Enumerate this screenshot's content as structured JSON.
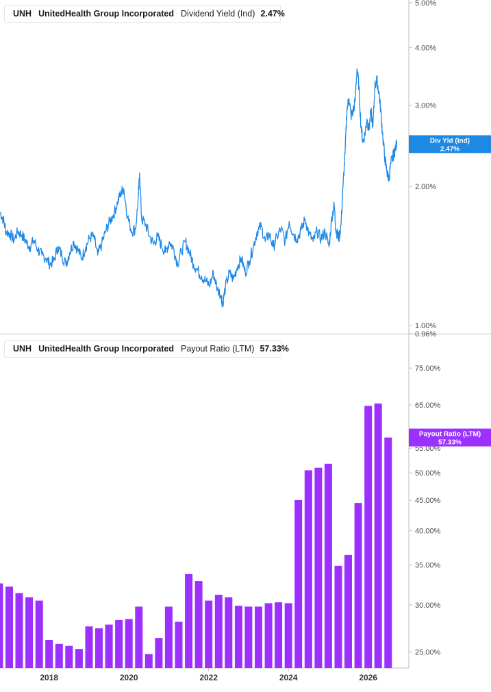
{
  "colors": {
    "yield": "#1e88e5",
    "payout": "#9b30ff",
    "axis": "#bdbdbd",
    "grid": "#e6e6e6"
  },
  "chart_data": [
    {
      "type": "line",
      "scale": "log",
      "legend": {
        "ticker": "UNH",
        "company": "UnitedHealth Group Incorporated",
        "metric": "Dividend Yield (Ind)",
        "value": "2.47%"
      },
      "marker": {
        "label": "Div Yld (Ind)",
        "value": "2.47%"
      },
      "y_ticks": [
        {
          "v": 5.0,
          "label": "5.00%"
        },
        {
          "v": 4.0,
          "label": "4.00%"
        },
        {
          "v": 3.0,
          "label": "3.00%"
        },
        {
          "v": 2.0,
          "label": "2.00%"
        },
        {
          "v": 1.0,
          "label": "1.00%"
        },
        {
          "v": 0.96,
          "label": "0.96%"
        }
      ],
      "ylim": [
        0.96,
        5.0
      ],
      "xlim": [
        2016.7,
        2026.95
      ],
      "series": [
        {
          "x": [
            2016.7,
            2016.78,
            2016.85,
            2016.95,
            2017.05,
            2017.15,
            2017.25,
            2017.35,
            2017.45,
            2017.55,
            2017.65,
            2017.75,
            2017.85,
            2017.95,
            2018.05,
            2018.15,
            2018.25,
            2018.35,
            2018.45,
            2018.55,
            2018.65,
            2018.75,
            2018.85,
            2018.95,
            2019.05,
            2019.15,
            2019.25,
            2019.35,
            2019.45,
            2019.55,
            2019.65,
            2019.72,
            2019.8,
            2019.9,
            2020.0,
            2020.1,
            2020.17,
            2020.2,
            2020.25,
            2020.35,
            2020.45,
            2020.55,
            2020.65,
            2020.75,
            2020.85,
            2020.95,
            2021.05,
            2021.15,
            2021.25,
            2021.35,
            2021.45,
            2021.55,
            2021.65,
            2021.75,
            2021.85,
            2021.95,
            2022.05,
            2022.15,
            2022.25,
            2022.28,
            2022.35,
            2022.45,
            2022.55,
            2022.65,
            2022.75,
            2022.85,
            2022.95,
            2023.05,
            2023.15,
            2023.25,
            2023.35,
            2023.45,
            2023.55,
            2023.65,
            2023.75,
            2023.85,
            2023.95,
            2024.05,
            2024.15,
            2024.25,
            2024.35,
            2024.45,
            2024.55,
            2024.65,
            2024.75,
            2024.85,
            2024.95,
            2025.02,
            2025.08,
            2025.12,
            2025.16,
            2025.2,
            2025.25,
            2025.3,
            2025.35,
            2025.4,
            2025.45,
            2025.5,
            2025.55,
            2025.6,
            2025.65,
            2025.7,
            2025.75,
            2025.8,
            2025.85,
            2025.9,
            2025.95,
            2026.0,
            2026.05,
            2026.1,
            2026.15,
            2026.2,
            2026.25,
            2026.3,
            2026.35,
            2026.4,
            2026.45,
            2026.5,
            2026.55,
            2026.6,
            2026.65
          ],
          "y": [
            1.76,
            1.7,
            1.6,
            1.58,
            1.53,
            1.6,
            1.57,
            1.52,
            1.48,
            1.53,
            1.46,
            1.42,
            1.4,
            1.36,
            1.38,
            1.48,
            1.42,
            1.36,
            1.44,
            1.52,
            1.46,
            1.4,
            1.48,
            1.55,
            1.56,
            1.42,
            1.5,
            1.6,
            1.68,
            1.74,
            1.85,
            1.93,
            1.98,
            1.72,
            1.6,
            1.62,
            1.9,
            2.14,
            1.7,
            1.66,
            1.56,
            1.5,
            1.56,
            1.49,
            1.44,
            1.52,
            1.47,
            1.36,
            1.45,
            1.52,
            1.44,
            1.36,
            1.32,
            1.28,
            1.25,
            1.22,
            1.3,
            1.2,
            1.16,
            1.11,
            1.21,
            1.3,
            1.26,
            1.34,
            1.4,
            1.3,
            1.38,
            1.48,
            1.6,
            1.64,
            1.52,
            1.58,
            1.48,
            1.56,
            1.62,
            1.52,
            1.68,
            1.58,
            1.54,
            1.61,
            1.7,
            1.58,
            1.52,
            1.6,
            1.54,
            1.6,
            1.48,
            1.72,
            1.82,
            1.62,
            1.57,
            1.55,
            1.65,
            2.0,
            2.35,
            2.95,
            3.1,
            2.85,
            2.9,
            3.05,
            3.6,
            3.3,
            2.7,
            2.5,
            2.6,
            2.8,
            2.65,
            2.9,
            2.7,
            3.3,
            3.4,
            3.2,
            2.9,
            2.55,
            2.3,
            2.15,
            2.08,
            2.25,
            2.32,
            2.4,
            2.47
          ]
        }
      ]
    },
    {
      "type": "bar",
      "scale": "log",
      "legend": {
        "ticker": "UNH",
        "company": "UnitedHealth Group Incorporated",
        "metric": "Payout Ratio (LTM)",
        "value": "57.33%"
      },
      "marker": {
        "label": "Payout Ratio (LTM)",
        "value": "57.33%"
      },
      "y_ticks": [
        {
          "v": 75,
          "label": "75.00%"
        },
        {
          "v": 65,
          "label": "65.00%"
        },
        {
          "v": 55,
          "label": "55.00%"
        },
        {
          "v": 50,
          "label": "50.00%"
        },
        {
          "v": 45,
          "label": "45.00%"
        },
        {
          "v": 40,
          "label": "40.00%"
        },
        {
          "v": 35,
          "label": "35.00%"
        },
        {
          "v": 30,
          "label": "30.00%"
        },
        {
          "v": 25,
          "label": "25.00%"
        }
      ],
      "ylim": [
        23.5,
        85
      ],
      "xlim": [
        2016.7,
        2026.95
      ],
      "x_ticks": [
        {
          "v": 2018,
          "label": "2018"
        },
        {
          "v": 2020,
          "label": "2020"
        },
        {
          "v": 2022,
          "label": "2022"
        },
        {
          "v": 2024,
          "label": "2024"
        },
        {
          "v": 2026,
          "label": "2026"
        }
      ],
      "series": [
        {
          "x": [
            2016.75,
            2017.0,
            2017.25,
            2017.5,
            2017.75,
            2018.0,
            2018.25,
            2018.5,
            2018.75,
            2019.0,
            2019.25,
            2019.5,
            2019.75,
            2020.0,
            2020.25,
            2020.5,
            2020.75,
            2021.0,
            2021.25,
            2021.5,
            2021.75,
            2022.0,
            2022.25,
            2022.5,
            2022.75,
            2023.0,
            2023.25,
            2023.5,
            2023.75,
            2024.0,
            2024.25,
            2024.5,
            2024.75,
            2025.0,
            2025.25,
            2025.5,
            2025.75,
            2026.0,
            2026.25,
            2026.5
          ],
          "values": [
            32.6,
            32.2,
            31.4,
            30.9,
            30.5,
            26.2,
            25.8,
            25.6,
            25.3,
            27.6,
            27.4,
            27.8,
            28.3,
            28.4,
            29.8,
            24.8,
            26.4,
            29.8,
            28.1,
            33.8,
            32.9,
            30.5,
            31.2,
            30.9,
            29.9,
            29.8,
            29.8,
            30.2,
            30.3,
            30.2,
            45.0,
            50.5,
            51.0,
            51.8,
            34.9,
            36.4,
            44.5,
            64.8,
            65.4,
            57.33
          ]
        }
      ]
    }
  ]
}
